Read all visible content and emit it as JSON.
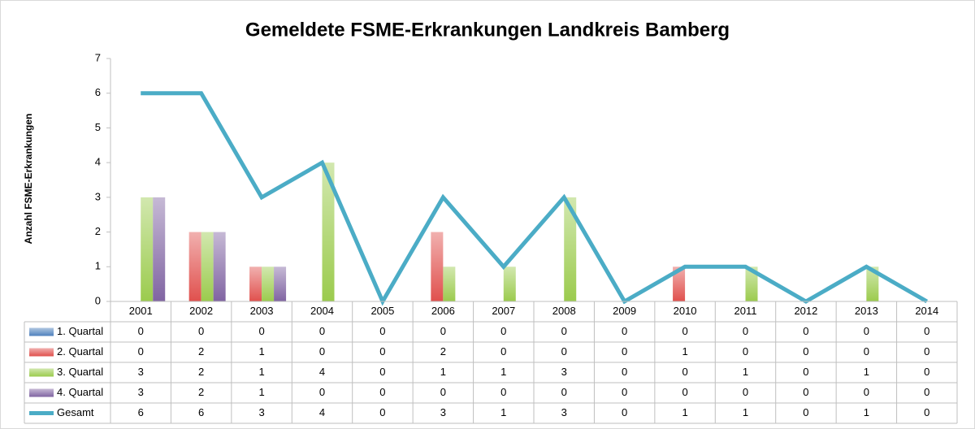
{
  "chart_data": {
    "type": "bar",
    "title": "Gemeldete FSME-Erkrankungen Landkreis Bamberg",
    "y_label": "Anzahl FSME-Erkrankungen",
    "categories": [
      "2001",
      "2002",
      "2003",
      "2004",
      "2005",
      "2006",
      "2007",
      "2008",
      "2009",
      "2010",
      "2011",
      "2012",
      "2013",
      "2014"
    ],
    "series": [
      {
        "name": "1. Quartal",
        "color": "#4f81bd",
        "type": "bar",
        "values": [
          0,
          0,
          0,
          0,
          0,
          0,
          0,
          0,
          0,
          0,
          0,
          0,
          0,
          0
        ]
      },
      {
        "name": "2. Quartal",
        "color": "#e0504d",
        "type": "bar",
        "values": [
          0,
          2,
          1,
          0,
          0,
          2,
          0,
          0,
          0,
          1,
          0,
          0,
          0,
          0
        ]
      },
      {
        "name": "3. Quartal",
        "color": "#9bcb4d",
        "type": "bar",
        "values": [
          3,
          2,
          1,
          4,
          0,
          1,
          1,
          3,
          0,
          0,
          1,
          0,
          1,
          0
        ]
      },
      {
        "name": "4. Quartal",
        "color": "#8064a2",
        "type": "bar",
        "values": [
          3,
          2,
          1,
          0,
          0,
          0,
          0,
          0,
          0,
          0,
          0,
          0,
          0,
          0
        ]
      },
      {
        "name": "Gesamt",
        "color": "#4bacc6",
        "type": "line",
        "values": [
          6,
          6,
          3,
          4,
          0,
          3,
          1,
          3,
          0,
          1,
          1,
          0,
          1,
          0
        ]
      }
    ],
    "ylim": [
      0,
      7
    ],
    "yticks": [
      0,
      1,
      2,
      3,
      4,
      5,
      6,
      7
    ],
    "grid": false,
    "data_table": true
  }
}
